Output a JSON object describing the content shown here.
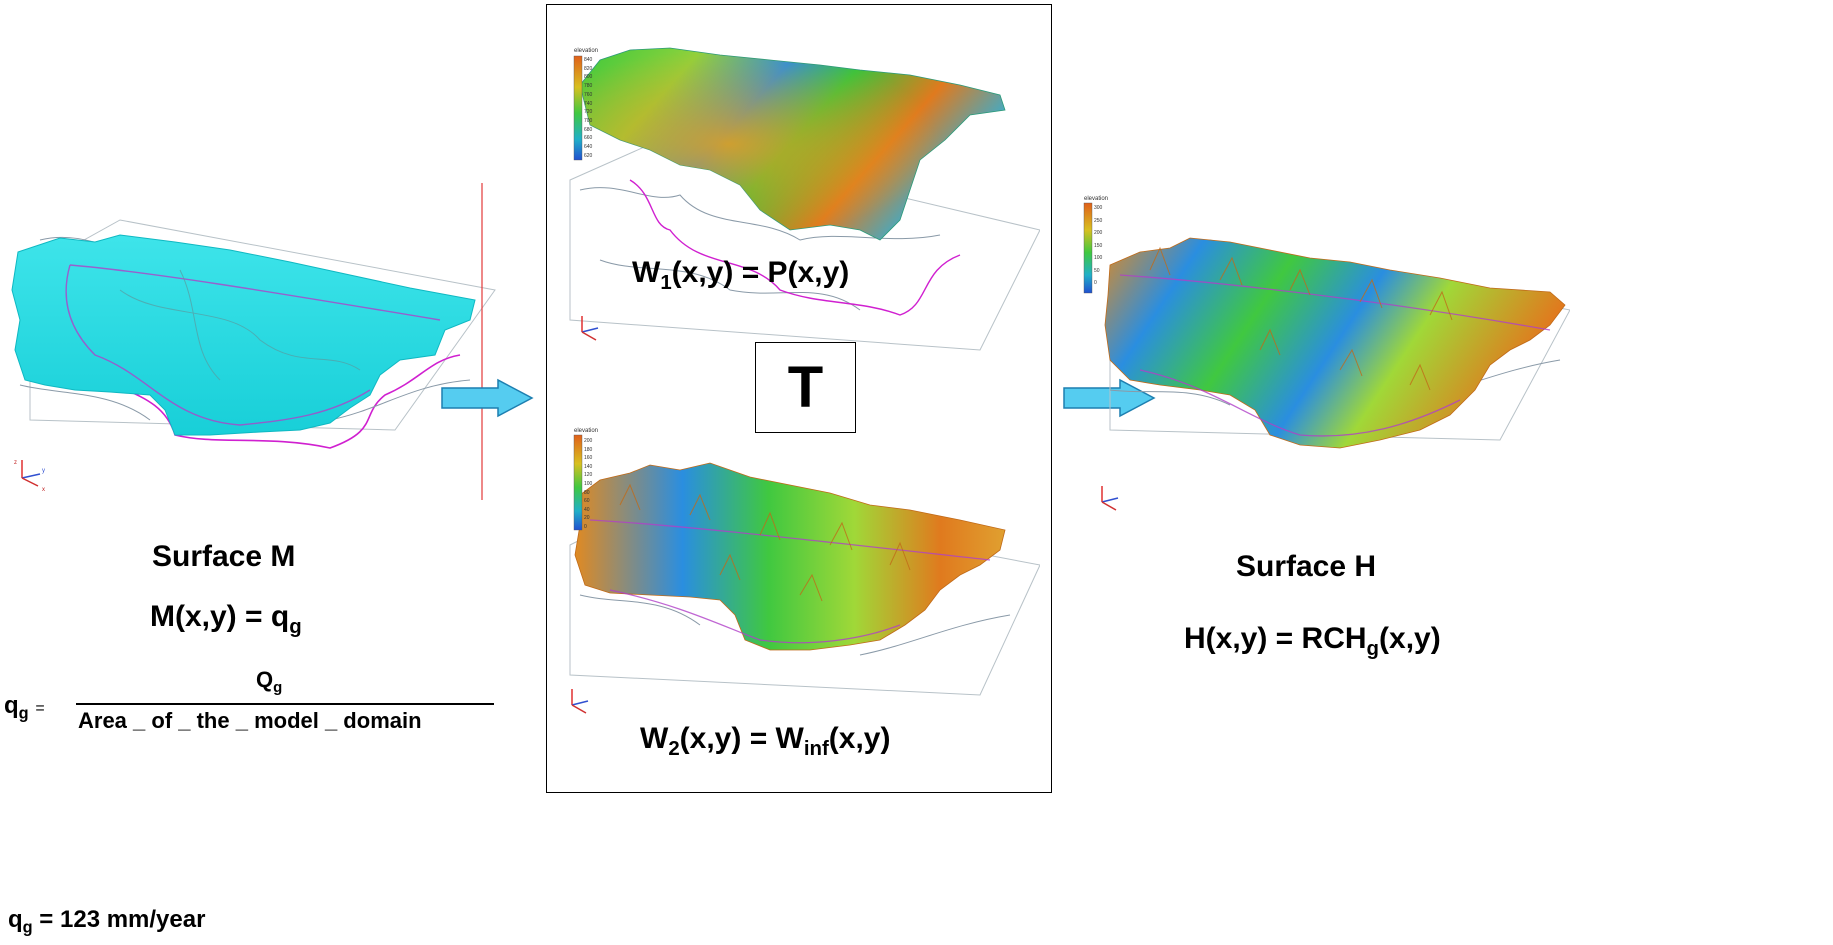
{
  "colors": {
    "surface_m": "#22d8e0",
    "arrow_fill": "#55ccf0",
    "arrow_stroke": "#1d7fb0",
    "boundary": "#d020d0",
    "river": "#8a9aa8",
    "red_line": "#e23a3a"
  },
  "surface_m": {
    "title": "Surface M",
    "eq_lhs": "M(x,y) = q",
    "eq_sub": "g"
  },
  "formula": {
    "lhs": "q",
    "lhs_sub": "g",
    "equals": "=",
    "numerator": "Q",
    "numerator_sub": "g",
    "denominator": "Area _ of _ the _ model _ domain"
  },
  "qg_value": {
    "prefix": "q",
    "sub": "g",
    "rest": " = 123 mm/year"
  },
  "w1": {
    "label_a": "W",
    "label_a_sub": "1",
    "label_b": "(x,y) = P(x,y)"
  },
  "transform": {
    "label": "T"
  },
  "w2": {
    "label_a": "W",
    "label_a_sub": "2",
    "label_b": "(x,y) = W",
    "label_c_sub": "inf",
    "label_d": "(x,y)"
  },
  "surface_h": {
    "title": "Surface H",
    "eq_a": "H(x,y) = RCH",
    "eq_sub": "g",
    "eq_b": "(x,y)"
  },
  "legend_w1": {
    "title": "elevation",
    "ticks": [
      "840",
      "820",
      "800",
      "780",
      "760",
      "740",
      "720",
      "700",
      "680",
      "660",
      "640",
      "620"
    ]
  },
  "legend_w2": {
    "title": "elevation",
    "ticks": [
      "200",
      "180",
      "160",
      "140",
      "120",
      "100",
      "80",
      "60",
      "40",
      "20",
      "0"
    ]
  },
  "legend_h": {
    "title": "elevation",
    "ticks": [
      "300",
      "250",
      "200",
      "150",
      "100",
      "50",
      "0"
    ]
  },
  "axis_labels": {
    "z": "z",
    "y": "y",
    "x": "x"
  }
}
